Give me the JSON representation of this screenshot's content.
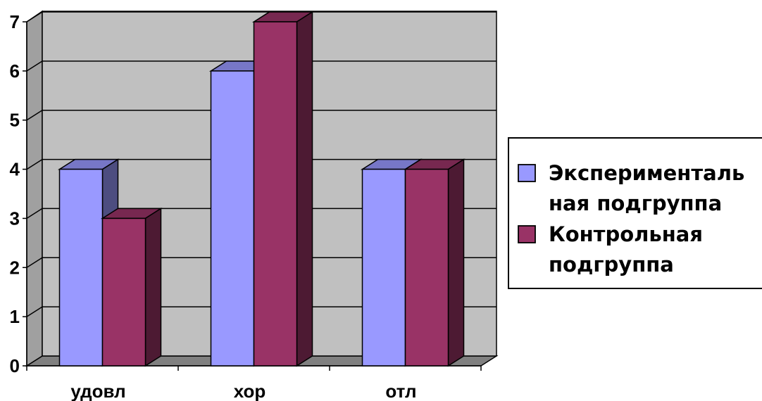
{
  "chart_data": {
    "type": "bar",
    "categories": [
      "удовл",
      "хор",
      "отл"
    ],
    "series": [
      {
        "name": "Экспериментальная подгруппа",
        "legend_lines": [
          "Эксперименталь",
          "ная подгруппа"
        ],
        "values": [
          4,
          6,
          4
        ],
        "color": "#9999FF"
      },
      {
        "name": "Контрольная подгруппа",
        "legend_lines": [
          "Контрольная",
          "подгруппа"
        ],
        "values": [
          3,
          7,
          4
        ],
        "color": "#993366"
      }
    ],
    "y_ticks": [
      0,
      1,
      2,
      3,
      4,
      5,
      6,
      7
    ],
    "ylim": [
      0,
      7
    ],
    "grid": true,
    "legend_position": "right",
    "three_d": true,
    "wall_color": "#C0C0C0"
  }
}
